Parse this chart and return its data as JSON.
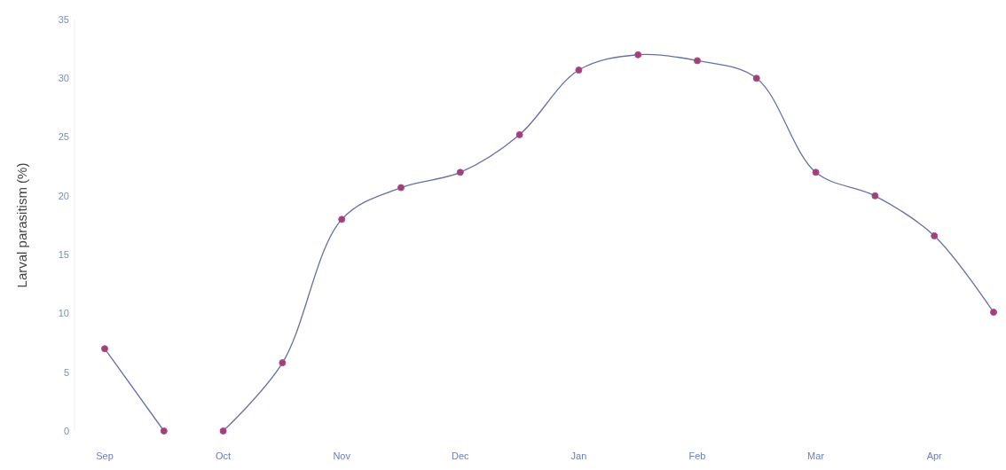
{
  "chart_data": {
    "type": "line",
    "ylabel": "Larval parasitism (%)",
    "categories": [
      "Sep",
      null,
      "Oct",
      null,
      "Nov",
      null,
      "Dec",
      null,
      "Jan",
      null,
      "Feb",
      null,
      "Mar",
      null,
      "Apr",
      null
    ],
    "series": [
      {
        "color": "#6670a8",
        "values": [
          7,
          0,
          null,
          null,
          null,
          null,
          null,
          null,
          null,
          null,
          null,
          null,
          null,
          null,
          null,
          null
        ]
      },
      {
        "color": "#6670a8",
        "values": [
          null,
          null,
          0,
          5.8,
          18,
          20.7,
          22,
          25.2,
          30.7,
          32,
          31.5,
          30,
          22,
          20,
          16.6,
          10.1
        ]
      }
    ],
    "ylim": [
      0,
      35
    ],
    "yticks": [
      0,
      5,
      10,
      15,
      20,
      25,
      30,
      35
    ],
    "marker": "circle",
    "line_style": "solid",
    "grid": false
  }
}
